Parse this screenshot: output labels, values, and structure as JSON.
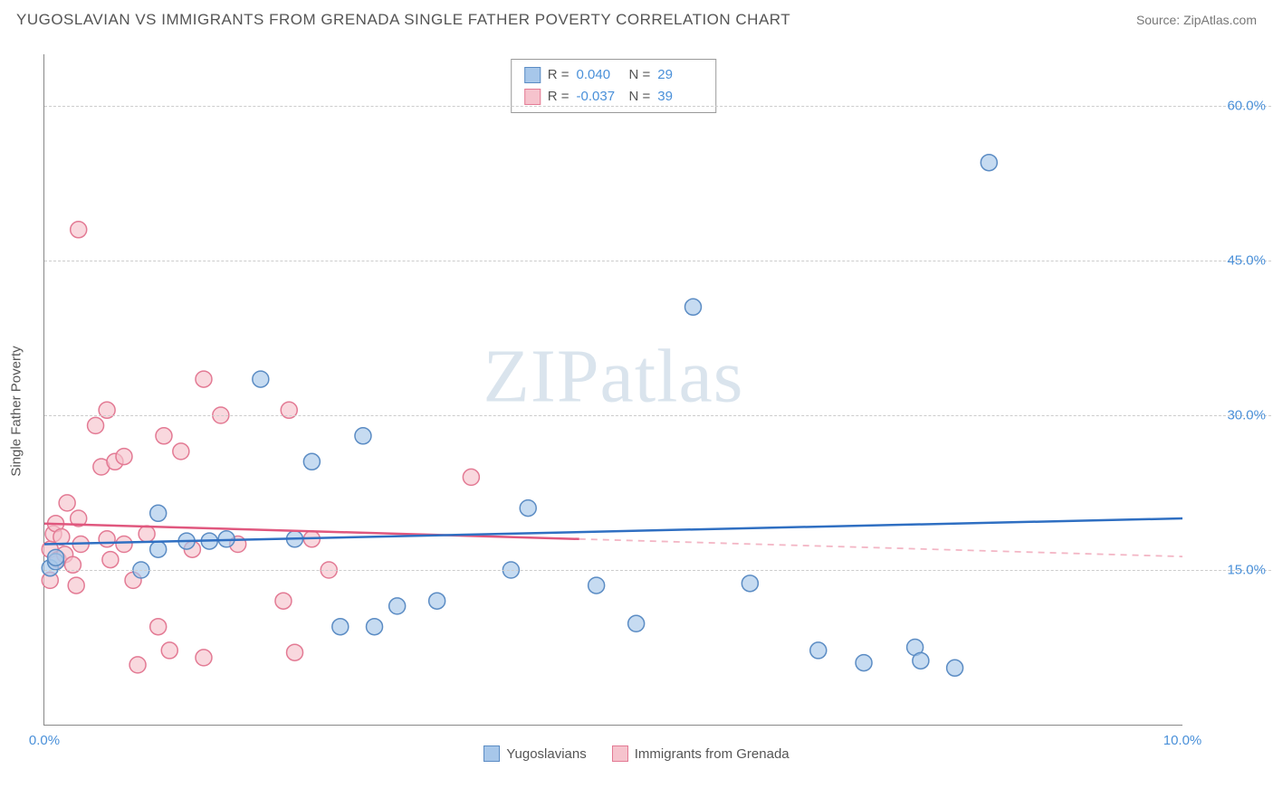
{
  "header": {
    "title": "YUGOSLAVIAN VS IMMIGRANTS FROM GRENADA SINGLE FATHER POVERTY CORRELATION CHART",
    "source_prefix": "Source: ",
    "source_name": "ZipAtlas.com"
  },
  "watermark": {
    "zip": "ZIP",
    "atlas": "atlas"
  },
  "chart": {
    "type": "scatter",
    "x_min": 0.0,
    "x_max": 10.0,
    "y_min": 0.0,
    "y_max": 65.0,
    "y_ticks": [
      15.0,
      30.0,
      45.0,
      60.0
    ],
    "y_tick_labels": [
      "15.0%",
      "30.0%",
      "45.0%",
      "60.0%"
    ],
    "x_tick_values": [
      0.0,
      10.0
    ],
    "x_tick_labels": [
      "0.0%",
      "10.0%"
    ],
    "y_axis_label": "Single Father Poverty",
    "background_color": "#ffffff",
    "grid_color": "#cccccc",
    "axis_color": "#888888",
    "series": {
      "blue": {
        "name": "Yugoslavians",
        "color_fill": "#a7c7ea",
        "color_stroke": "#5b8cc4",
        "marker_radius": 9,
        "r_value": "0.040",
        "n_value": "29",
        "trend_solid": {
          "x1": 0.0,
          "y1": 17.5,
          "x2": 10.0,
          "y2": 20.0
        },
        "points": [
          {
            "x": 0.05,
            "y": 15.2
          },
          {
            "x": 0.1,
            "y": 15.8
          },
          {
            "x": 0.1,
            "y": 16.2
          },
          {
            "x": 0.85,
            "y": 15.0
          },
          {
            "x": 1.0,
            "y": 20.5
          },
          {
            "x": 1.0,
            "y": 17.0
          },
          {
            "x": 1.25,
            "y": 17.8
          },
          {
            "x": 1.45,
            "y": 17.8
          },
          {
            "x": 1.6,
            "y": 18.0
          },
          {
            "x": 1.9,
            "y": 33.5
          },
          {
            "x": 2.2,
            "y": 18.0
          },
          {
            "x": 2.35,
            "y": 25.5
          },
          {
            "x": 2.6,
            "y": 9.5
          },
          {
            "x": 2.8,
            "y": 28.0
          },
          {
            "x": 2.9,
            "y": 9.5
          },
          {
            "x": 3.1,
            "y": 11.5
          },
          {
            "x": 3.45,
            "y": 12.0
          },
          {
            "x": 4.1,
            "y": 15.0
          },
          {
            "x": 4.25,
            "y": 21.0
          },
          {
            "x": 4.85,
            "y": 13.5
          },
          {
            "x": 5.2,
            "y": 9.8
          },
          {
            "x": 5.7,
            "y": 40.5
          },
          {
            "x": 6.2,
            "y": 13.7
          },
          {
            "x": 6.8,
            "y": 7.2
          },
          {
            "x": 7.2,
            "y": 6.0
          },
          {
            "x": 7.65,
            "y": 7.5
          },
          {
            "x": 7.7,
            "y": 6.2
          },
          {
            "x": 8.0,
            "y": 5.5
          },
          {
            "x": 8.3,
            "y": 54.5
          }
        ]
      },
      "pink": {
        "name": "Immigrants from Grenada",
        "color_fill": "#f6c3cd",
        "color_stroke": "#e37a94",
        "marker_radius": 9,
        "r_value": "-0.037",
        "n_value": "39",
        "trend_solid": {
          "x1": 0.0,
          "y1": 19.5,
          "x2": 4.7,
          "y2": 18.0
        },
        "trend_dashed": {
          "x1": 4.7,
          "y1": 18.0,
          "x2": 10.0,
          "y2": 16.3
        },
        "points": [
          {
            "x": 0.05,
            "y": 17.0
          },
          {
            "x": 0.05,
            "y": 14.0
          },
          {
            "x": 0.08,
            "y": 18.5
          },
          {
            "x": 0.1,
            "y": 19.5
          },
          {
            "x": 0.12,
            "y": 16.0
          },
          {
            "x": 0.15,
            "y": 18.2
          },
          {
            "x": 0.18,
            "y": 16.5
          },
          {
            "x": 0.2,
            "y": 21.5
          },
          {
            "x": 0.25,
            "y": 15.5
          },
          {
            "x": 0.28,
            "y": 13.5
          },
          {
            "x": 0.3,
            "y": 20.0
          },
          {
            "x": 0.32,
            "y": 17.5
          },
          {
            "x": 0.3,
            "y": 48.0
          },
          {
            "x": 0.45,
            "y": 29.0
          },
          {
            "x": 0.5,
            "y": 25.0
          },
          {
            "x": 0.55,
            "y": 18.0
          },
          {
            "x": 0.55,
            "y": 30.5
          },
          {
            "x": 0.58,
            "y": 16.0
          },
          {
            "x": 0.62,
            "y": 25.5
          },
          {
            "x": 0.7,
            "y": 26.0
          },
          {
            "x": 0.7,
            "y": 17.5
          },
          {
            "x": 0.78,
            "y": 14.0
          },
          {
            "x": 0.82,
            "y": 5.8
          },
          {
            "x": 0.9,
            "y": 18.5
          },
          {
            "x": 1.0,
            "y": 9.5
          },
          {
            "x": 1.05,
            "y": 28.0
          },
          {
            "x": 1.1,
            "y": 7.2
          },
          {
            "x": 1.2,
            "y": 26.5
          },
          {
            "x": 1.3,
            "y": 17.0
          },
          {
            "x": 1.4,
            "y": 33.5
          },
          {
            "x": 1.4,
            "y": 6.5
          },
          {
            "x": 1.55,
            "y": 30.0
          },
          {
            "x": 1.7,
            "y": 17.5
          },
          {
            "x": 2.1,
            "y": 12.0
          },
          {
            "x": 2.15,
            "y": 30.5
          },
          {
            "x": 2.2,
            "y": 7.0
          },
          {
            "x": 2.35,
            "y": 18.0
          },
          {
            "x": 2.5,
            "y": 15.0
          },
          {
            "x": 3.75,
            "y": 24.0
          }
        ]
      }
    }
  },
  "legend": {
    "stats_rows": [
      {
        "swatch_fill": "#a7c7ea",
        "swatch_stroke": "#5b8cc4",
        "r_label": "R =",
        "r": "0.040",
        "n_label": "N =",
        "n": "29"
      },
      {
        "swatch_fill": "#f6c3cd",
        "swatch_stroke": "#e37a94",
        "r_label": "R =",
        "r": "-0.037",
        "n_label": "N =",
        "n": "39"
      }
    ],
    "items": [
      {
        "swatch_fill": "#a7c7ea",
        "swatch_stroke": "#5b8cc4",
        "label": "Yugoslavians"
      },
      {
        "swatch_fill": "#f6c3cd",
        "swatch_stroke": "#e37a94",
        "label": "Immigrants from Grenada"
      }
    ]
  }
}
